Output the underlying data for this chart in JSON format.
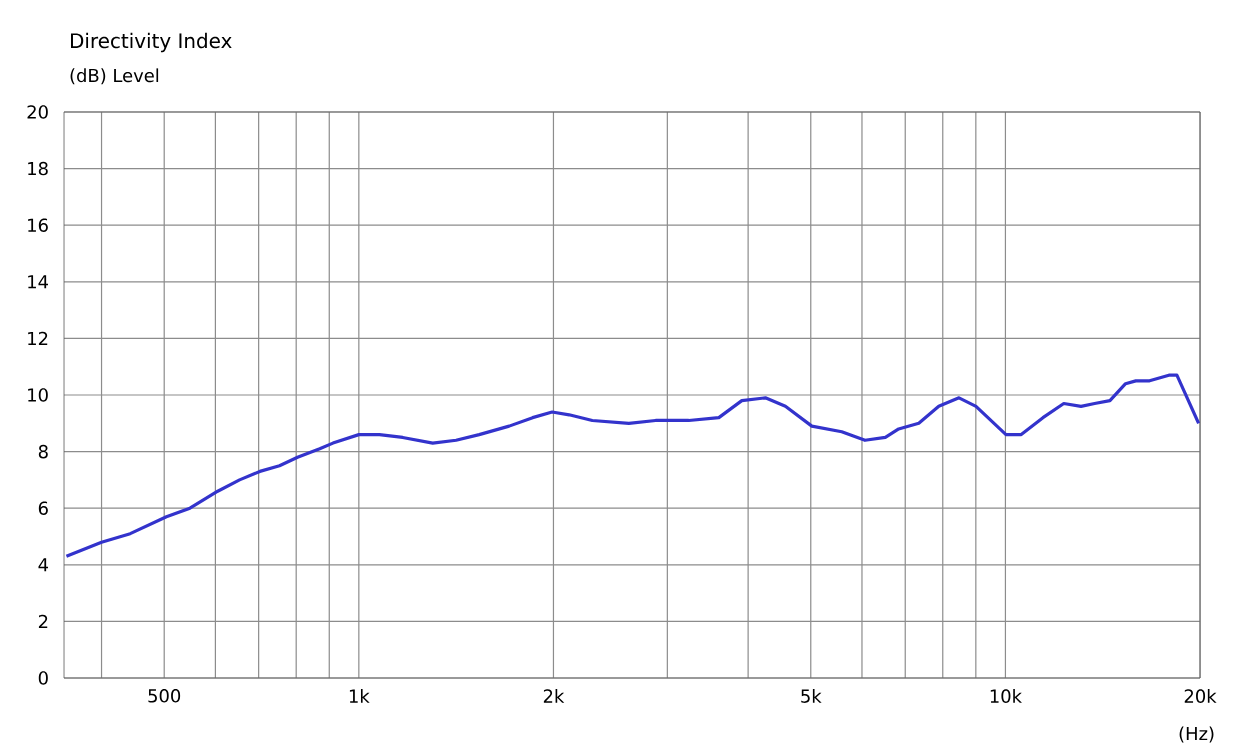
{
  "chart_data": {
    "type": "line",
    "title": "Directivity Index",
    "ylabel": "(dB)  Level",
    "xlabel": "(Hz)",
    "log": "x",
    "grid": true,
    "marker": "none",
    "line_style": "solid",
    "xlim": [
      350,
      20000
    ],
    "ylim": [
      0,
      20
    ],
    "xticks": [
      {
        "value": 400,
        "label": null
      },
      500,
      {
        "value": 600,
        "label": null
      },
      {
        "value": 700,
        "label": null
      },
      {
        "value": 800,
        "label": null
      },
      {
        "value": 900,
        "label": null
      },
      {
        "value": 1000,
        "label": "1k"
      },
      {
        "value": 2000,
        "label": "2k"
      },
      {
        "value": 3000,
        "label": null
      },
      {
        "value": 4000,
        "label": null
      },
      {
        "value": 5000,
        "label": "5k"
      },
      {
        "value": 6000,
        "label": null
      },
      {
        "value": 7000,
        "label": null
      },
      {
        "value": 8000,
        "label": null
      },
      {
        "value": 9000,
        "label": null
      },
      {
        "value": 10000,
        "label": "10k"
      },
      {
        "value": 20000,
        "label": "20k"
      }
    ],
    "yticks": [
      0,
      2,
      4,
      6,
      8,
      10,
      12,
      14,
      16,
      18,
      20
    ],
    "series": [
      {
        "color": "#3333cc",
        "x": [
          353,
          400,
          443,
          504,
          548,
          605,
          654,
          703,
          754,
          804,
          870,
          912,
          1000,
          1076,
          1169,
          1301,
          1414,
          1535,
          1708,
          1857,
          1991,
          2115,
          2297,
          2616,
          2877,
          3238,
          3604,
          3912,
          4254,
          4568,
          5019,
          5583,
          6065,
          6521,
          6838,
          7346,
          7889,
          8477,
          9006,
          10020,
          10580,
          11430,
          12310,
          13090,
          13740,
          14510,
          15340,
          15910,
          16710,
          17900,
          18420,
          19900
        ],
        "values": [
          4.3,
          4.8,
          5.1,
          5.7,
          6.0,
          6.6,
          7.0,
          7.3,
          7.5,
          7.8,
          8.1,
          8.3,
          8.6,
          8.6,
          8.5,
          8.3,
          8.4,
          8.6,
          8.9,
          9.2,
          9.4,
          9.3,
          9.1,
          9.0,
          9.1,
          9.1,
          9.2,
          9.8,
          9.9,
          9.6,
          8.9,
          8.7,
          8.4,
          8.5,
          8.8,
          9.0,
          9.6,
          9.9,
          9.6,
          8.6,
          8.6,
          9.2,
          9.7,
          9.6,
          9.7,
          9.8,
          10.4,
          10.5,
          10.5,
          10.7,
          10.7,
          9.0
        ]
      }
    ]
  }
}
